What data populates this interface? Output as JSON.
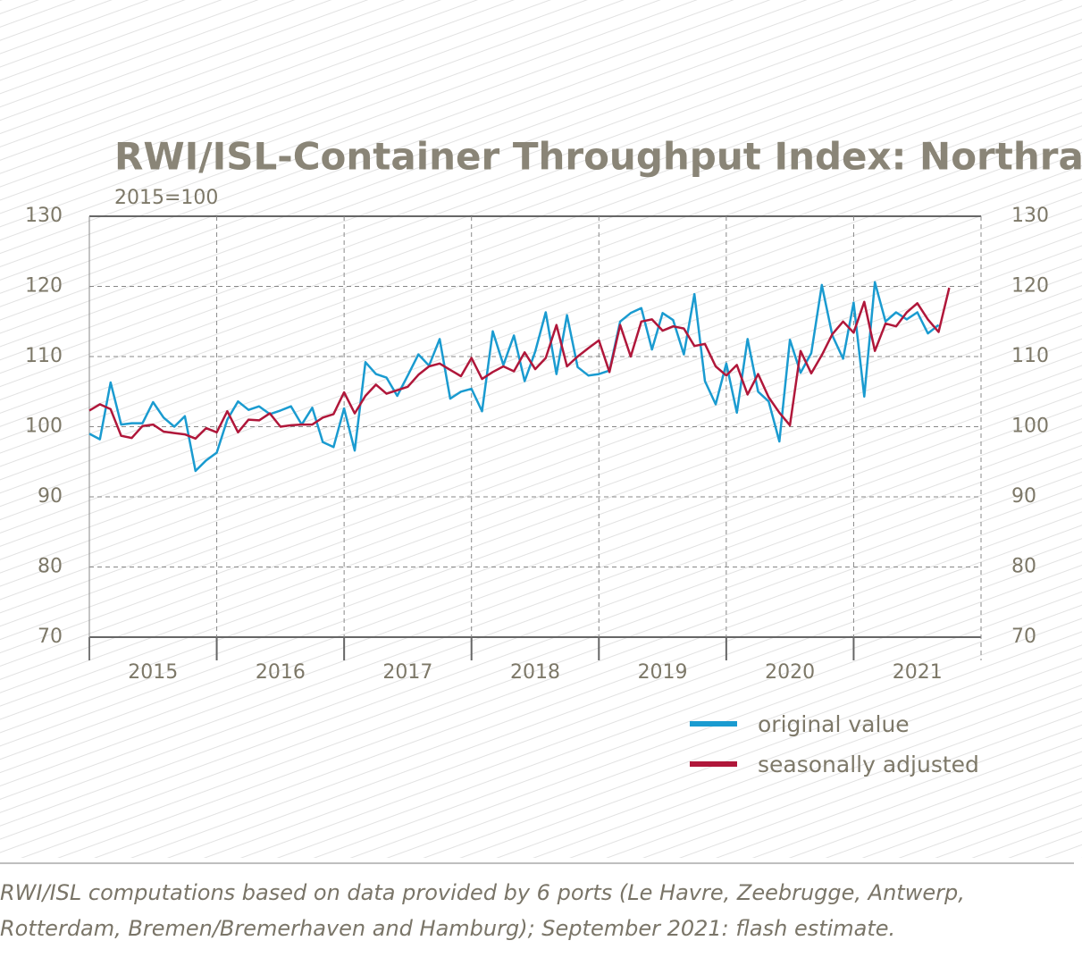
{
  "chart_data": {
    "type": "line",
    "title": "RWI/ISL-Container Throughput Index: Northrange",
    "subtitle": "2015=100",
    "x": [
      2015,
      2015.083,
      2015.167,
      2015.25,
      2015.333,
      2015.417,
      2015.5,
      2015.583,
      2015.667,
      2015.75,
      2015.833,
      2015.917,
      2016,
      2016.083,
      2016.167,
      2016.25,
      2016.333,
      2016.417,
      2016.5,
      2016.583,
      2016.667,
      2016.75,
      2016.833,
      2016.917,
      2017,
      2017.083,
      2017.167,
      2017.25,
      2017.333,
      2017.417,
      2017.5,
      2017.583,
      2017.667,
      2017.75,
      2017.833,
      2017.917,
      2018,
      2018.083,
      2018.167,
      2018.25,
      2018.333,
      2018.417,
      2018.5,
      2018.583,
      2018.667,
      2018.75,
      2018.833,
      2018.917,
      2019,
      2019.083,
      2019.167,
      2019.25,
      2019.333,
      2019.417,
      2019.5,
      2019.583,
      2019.667,
      2019.75,
      2019.833,
      2019.917,
      2020,
      2020.083,
      2020.167,
      2020.25,
      2020.333,
      2020.417,
      2020.5,
      2020.583,
      2020.667,
      2020.75,
      2020.833,
      2020.917,
      2021,
      2021.083,
      2021.167,
      2021.25,
      2021.333,
      2021.417,
      2021.5,
      2021.583,
      2021.667,
      2021.75
    ],
    "series": [
      {
        "name": "original value",
        "color": "#1a9bd0",
        "values": [
          99,
          98.2,
          106.3,
          100.3,
          100.5,
          100.5,
          103.5,
          101.3,
          100,
          101.5,
          93.7,
          95.2,
          96.3,
          101,
          103.6,
          102.4,
          102.9,
          101.8,
          102.3,
          102.9,
          100.3,
          102.7,
          97.8,
          97.1,
          102.6,
          96.6,
          109.2,
          107.5,
          107,
          104.4,
          107.3,
          110.3,
          108.7,
          112.5,
          104,
          105,
          105.4,
          102.2,
          113.6,
          108.8,
          113,
          106.5,
          110.7,
          116.3,
          107.5,
          115.9,
          108.5,
          107.3,
          107.5,
          108,
          115,
          116.2,
          116.9,
          111,
          116.2,
          115.2,
          110.3,
          118.9,
          106.5,
          103.2,
          109,
          102,
          112.5,
          105,
          103.6,
          97.9,
          112.4,
          107.7,
          110.5,
          120.2,
          113,
          109.7,
          117.7,
          104.3,
          120.6,
          115,
          116.3,
          115.3,
          116.3,
          113.3,
          114.5,
          null
        ]
      },
      {
        "name": "seasonally adjusted",
        "color": "#b0173a",
        "values": [
          102.3,
          103.2,
          102.5,
          98.7,
          98.4,
          100.1,
          100.3,
          99.3,
          99.1,
          98.9,
          98.3,
          99.8,
          99.2,
          102.2,
          99.2,
          101,
          100.9,
          101.9,
          100,
          100.2,
          100.3,
          100.3,
          101.3,
          101.8,
          104.9,
          101.9,
          104.4,
          106,
          104.7,
          105.2,
          105.7,
          107.4,
          108.6,
          109,
          108.1,
          107.2,
          109.8,
          106.8,
          107.8,
          108.6,
          107.9,
          110.6,
          108.2,
          109.8,
          114.5,
          108.6,
          110,
          111.2,
          112.3,
          107.8,
          114.5,
          110,
          115,
          115.3,
          113.7,
          114.3,
          114,
          111.5,
          111.8,
          108.6,
          107.3,
          108.8,
          104.6,
          107.5,
          104.2,
          102,
          100.2,
          110.8,
          107.6,
          110.2,
          113.2,
          115,
          113.4,
          117.8,
          110.8,
          114.7,
          114.3,
          116.3,
          117.6,
          115.3,
          113.5,
          119.8
        ]
      }
    ],
    "xlim": [
      2015,
      2022
    ],
    "xticks": [
      2015,
      2016,
      2017,
      2018,
      2019,
      2020,
      2021
    ],
    "ylim": [
      70,
      130
    ],
    "yticks": [
      70,
      80,
      90,
      100,
      110,
      120,
      130
    ],
    "grid": true,
    "footnote": [
      "RWI/ISL computations based on data provided by 6 ports (Le Havre, Zeebrugge, Antwerp,",
      "Rotterdam, Bremen/Bremerhaven and Hamburg); September 2021: flash estimate."
    ]
  }
}
